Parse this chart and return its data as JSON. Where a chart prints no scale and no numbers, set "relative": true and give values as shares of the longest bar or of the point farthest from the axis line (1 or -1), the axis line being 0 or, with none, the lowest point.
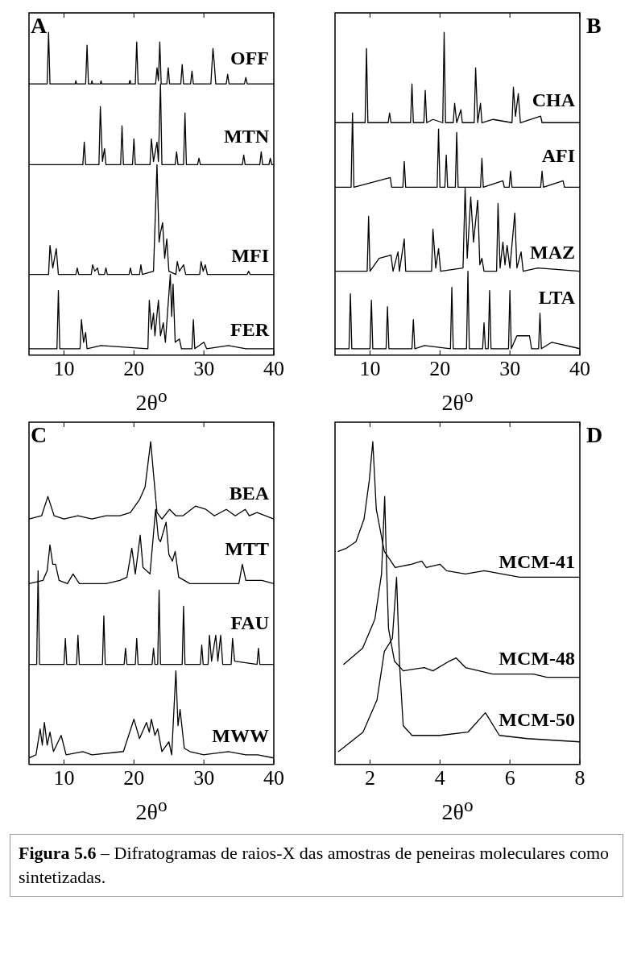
{
  "chart_data": [
    {
      "type": "line",
      "title": "A",
      "xlabel": "2θ$^{o}$",
      "relative": true,
      "xlim": [
        5,
        40
      ],
      "xticks": [
        10,
        20,
        30,
        40
      ],
      "series": [
        {
          "name": "OFF",
          "color": "#000000",
          "x": [
            5,
            7.6,
            7.8,
            8.0,
            11.6,
            11.7,
            11.8,
            13.1,
            13.3,
            13.5,
            13.9,
            14.0,
            14.1,
            15.2,
            15.3,
            15.4,
            19.3,
            19.4,
            19.5,
            20.2,
            20.4,
            20.6,
            23.1,
            23.3,
            23.5,
            23.7,
            23.9,
            24.7,
            24.9,
            25.1,
            26.7,
            26.9,
            27.1,
            28.1,
            28.3,
            28.5,
            31.0,
            31.3,
            31.5,
            31.7,
            33.2,
            33.4,
            33.6,
            35.8,
            36.0,
            36.2,
            40
          ],
          "values": [
            0.84,
            0.84,
            1.0,
            0.84,
            0.84,
            0.85,
            0.84,
            0.84,
            0.96,
            0.84,
            0.84,
            0.85,
            0.84,
            0.84,
            0.85,
            0.84,
            0.84,
            0.85,
            0.84,
            0.84,
            0.97,
            0.84,
            0.84,
            0.89,
            0.85,
            0.97,
            0.84,
            0.84,
            0.89,
            0.84,
            0.84,
            0.9,
            0.84,
            0.84,
            0.88,
            0.84,
            0.84,
            0.95,
            0.9,
            0.84,
            0.84,
            0.87,
            0.84,
            0.84,
            0.86,
            0.84,
            0.84
          ]
        },
        {
          "name": "MTN",
          "color": "#000000",
          "x": [
            5,
            12.7,
            12.9,
            13.1,
            15.0,
            15.2,
            15.5,
            15.8,
            16.0,
            18.1,
            18.3,
            18.5,
            19.8,
            20.0,
            20.2,
            22.3,
            22.5,
            22.8,
            23.3,
            23.5,
            23.8,
            24.0,
            25.9,
            26.1,
            26.3,
            27.1,
            27.3,
            27.5,
            29.1,
            29.3,
            29.5,
            35.5,
            35.7,
            35.9,
            38.0,
            38.2,
            38.4,
            39.3,
            39.5,
            39.7,
            40
          ],
          "values": [
            0.59,
            0.59,
            0.66,
            0.59,
            0.59,
            0.77,
            0.6,
            0.64,
            0.59,
            0.59,
            0.71,
            0.59,
            0.59,
            0.67,
            0.59,
            0.59,
            0.67,
            0.6,
            0.66,
            0.6,
            0.84,
            0.59,
            0.59,
            0.63,
            0.59,
            0.59,
            0.75,
            0.59,
            0.59,
            0.61,
            0.59,
            0.59,
            0.62,
            0.59,
            0.59,
            0.63,
            0.59,
            0.59,
            0.61,
            0.59,
            0.59
          ]
        },
        {
          "name": "MFI",
          "color": "#000000",
          "x": [
            5,
            7.8,
            8.0,
            8.4,
            8.9,
            9.2,
            11.7,
            11.9,
            12.1,
            13.9,
            14.1,
            14.4,
            14.8,
            15.0,
            15.8,
            16.0,
            16.2,
            19.3,
            19.5,
            19.7,
            20.8,
            21.0,
            21.2,
            22.8,
            23.3,
            23.6,
            23.8,
            24.1,
            24.4,
            24.7,
            25.0,
            26.0,
            26.2,
            26.5,
            27.1,
            27.4,
            29.4,
            29.6,
            29.9,
            30.2,
            30.5,
            36.2,
            36.4,
            36.6,
            40
          ],
          "values": [
            0.25,
            0.25,
            0.34,
            0.27,
            0.33,
            0.25,
            0.25,
            0.27,
            0.25,
            0.25,
            0.28,
            0.26,
            0.27,
            0.25,
            0.25,
            0.27,
            0.25,
            0.25,
            0.27,
            0.25,
            0.25,
            0.28,
            0.25,
            0.26,
            0.59,
            0.35,
            0.38,
            0.41,
            0.3,
            0.36,
            0.26,
            0.25,
            0.29,
            0.26,
            0.28,
            0.25,
            0.25,
            0.29,
            0.26,
            0.28,
            0.25,
            0.25,
            0.26,
            0.25,
            0.25
          ]
        },
        {
          "name": "FER",
          "color": "#000000",
          "x": [
            5,
            9.0,
            9.2,
            9.4,
            12.3,
            12.5,
            12.8,
            13.1,
            13.3,
            15.3,
            22.0,
            22.2,
            22.5,
            22.8,
            23.0,
            23.5,
            23.8,
            24.2,
            24.5,
            25.2,
            25.4,
            25.6,
            25.9,
            26.5,
            26.8,
            28.3,
            28.5,
            28.7,
            30.0,
            30.4,
            33.5,
            36.0,
            40
          ],
          "values": [
            0.02,
            0.02,
            0.2,
            0.02,
            0.02,
            0.11,
            0.04,
            0.07,
            0.02,
            0.03,
            0.02,
            0.17,
            0.08,
            0.13,
            0.06,
            0.17,
            0.06,
            0.1,
            0.04,
            0.25,
            0.12,
            0.22,
            0.04,
            0.05,
            0.02,
            0.02,
            0.11,
            0.02,
            0.04,
            0.02,
            0.03,
            0.02,
            0.02
          ]
        }
      ]
    },
    {
      "type": "line",
      "title": "B",
      "xlabel": "2θ$^{o}$",
      "relative": true,
      "xlim": [
        5,
        40
      ],
      "xticks": [
        10,
        20,
        30,
        40
      ],
      "series": [
        {
          "name": "CHA",
          "color": "#000000",
          "x": [
            5,
            9.3,
            9.5,
            9.7,
            12.6,
            12.8,
            13.0,
            15.8,
            16.0,
            16.2,
            17.7,
            17.9,
            18.1,
            19.0,
            20.4,
            20.6,
            20.8,
            21.9,
            22.1,
            22.4,
            23.0,
            23.2,
            24.9,
            25.1,
            25.4,
            25.8,
            26.0,
            27.6,
            30.3,
            30.5,
            30.8,
            31.2,
            31.5,
            34.4,
            34.6,
            40
          ],
          "values": [
            0.72,
            0.72,
            0.95,
            0.72,
            0.72,
            0.75,
            0.72,
            0.72,
            0.84,
            0.72,
            0.72,
            0.82,
            0.72,
            0.73,
            0.72,
            1.0,
            0.72,
            0.72,
            0.78,
            0.72,
            0.76,
            0.72,
            0.72,
            0.89,
            0.72,
            0.78,
            0.72,
            0.73,
            0.72,
            0.83,
            0.74,
            0.81,
            0.72,
            0.74,
            0.72,
            0.72
          ]
        },
        {
          "name": "AFI",
          "color": "#000000",
          "x": [
            5,
            7.3,
            7.5,
            7.7,
            12.9,
            13.1,
            14.7,
            14.9,
            15.1,
            19.6,
            19.8,
            20.0,
            20.7,
            20.9,
            21.1,
            22.2,
            22.4,
            22.6,
            25.8,
            26.0,
            26.2,
            29.0,
            29.2,
            29.9,
            30.1,
            30.3,
            34.4,
            34.6,
            34.8,
            37.6,
            37.8,
            40
          ],
          "values": [
            0.52,
            0.52,
            0.75,
            0.52,
            0.55,
            0.52,
            0.52,
            0.6,
            0.52,
            0.52,
            0.7,
            0.52,
            0.52,
            0.62,
            0.52,
            0.52,
            0.69,
            0.52,
            0.52,
            0.61,
            0.52,
            0.54,
            0.52,
            0.52,
            0.57,
            0.52,
            0.52,
            0.57,
            0.52,
            0.54,
            0.52,
            0.52
          ]
        },
        {
          "name": "MAZ",
          "color": "#000000",
          "x": [
            5,
            9.6,
            9.8,
            10.0,
            11.3,
            13.0,
            13.3,
            14.0,
            14.2,
            14.9,
            15.1,
            18.8,
            19.0,
            19.4,
            19.8,
            20.1,
            23.3,
            23.6,
            23.9,
            24.4,
            24.8,
            25.4,
            25.7,
            26.0,
            26.3,
            28.1,
            28.3,
            28.6,
            29.0,
            29.3,
            29.6,
            30.0,
            30.7,
            31.0,
            31.6,
            31.9,
            34.0,
            40
          ],
          "values": [
            0.26,
            0.26,
            0.43,
            0.26,
            0.3,
            0.31,
            0.26,
            0.32,
            0.26,
            0.36,
            0.26,
            0.26,
            0.39,
            0.27,
            0.33,
            0.26,
            0.27,
            0.52,
            0.3,
            0.49,
            0.35,
            0.48,
            0.28,
            0.3,
            0.26,
            0.26,
            0.47,
            0.27,
            0.35,
            0.28,
            0.34,
            0.27,
            0.44,
            0.27,
            0.32,
            0.26,
            0.27,
            0.26
          ]
        },
        {
          "name": "LTA",
          "color": "#000000",
          "x": [
            5,
            7.0,
            7.2,
            7.4,
            10.0,
            10.2,
            10.4,
            12.3,
            12.5,
            12.7,
            16.0,
            16.2,
            16.4,
            17.8,
            21.5,
            21.7,
            21.9,
            23.8,
            24.0,
            24.2,
            26.1,
            26.3,
            26.5,
            26.9,
            27.1,
            27.3,
            29.8,
            30.0,
            30.2,
            31.0,
            32.8,
            33.1,
            34.1,
            34.3,
            34.5,
            36.0,
            40
          ],
          "values": [
            0.02,
            0.02,
            0.19,
            0.02,
            0.02,
            0.17,
            0.02,
            0.02,
            0.15,
            0.02,
            0.02,
            0.11,
            0.02,
            0.03,
            0.02,
            0.21,
            0.02,
            0.02,
            0.26,
            0.02,
            0.02,
            0.1,
            0.02,
            0.02,
            0.2,
            0.02,
            0.02,
            0.2,
            0.02,
            0.06,
            0.06,
            0.02,
            0.02,
            0.13,
            0.02,
            0.04,
            0.02
          ]
        }
      ]
    },
    {
      "type": "line",
      "title": "C",
      "xlabel": "2θ$^{o}$",
      "relative": true,
      "xlim": [
        5,
        40
      ],
      "xticks": [
        10,
        20,
        30,
        40
      ],
      "series": [
        {
          "name": "BEA",
          "color": "#000000",
          "x": [
            5,
            6.8,
            7.7,
            8.6,
            10,
            12,
            14,
            16,
            18,
            19.5,
            20.8,
            21.6,
            22.0,
            22.4,
            22.8,
            23.3,
            24.0,
            25.1,
            26,
            27,
            28.8,
            30.3,
            31.5,
            33.2,
            34.5,
            35.9,
            36.5,
            37.6,
            40
          ],
          "values": [
            0.76,
            0.77,
            0.83,
            0.77,
            0.76,
            0.77,
            0.76,
            0.77,
            0.77,
            0.78,
            0.82,
            0.86,
            0.93,
            1.0,
            0.9,
            0.78,
            0.76,
            0.79,
            0.77,
            0.77,
            0.8,
            0.79,
            0.77,
            0.79,
            0.77,
            0.79,
            0.77,
            0.78,
            0.76
          ]
        },
        {
          "name": "MTT",
          "color": "#000000",
          "x": [
            5,
            7.0,
            7.6,
            8.0,
            8.4,
            8.8,
            9.3,
            10.5,
            11.3,
            12.2,
            14,
            16,
            18.0,
            19.0,
            19.7,
            20.2,
            20.9,
            21.3,
            21.8,
            22.3,
            23.1,
            23.5,
            23.8,
            24.2,
            24.6,
            25.0,
            25.5,
            25.9,
            26.4,
            28,
            30,
            32,
            35.0,
            35.5,
            36.0,
            38.3,
            40
          ],
          "values": [
            0.56,
            0.57,
            0.6,
            0.68,
            0.62,
            0.62,
            0.57,
            0.56,
            0.59,
            0.56,
            0.56,
            0.56,
            0.57,
            0.58,
            0.67,
            0.59,
            0.71,
            0.61,
            0.6,
            0.59,
            0.79,
            0.7,
            0.69,
            0.72,
            0.75,
            0.65,
            0.63,
            0.66,
            0.58,
            0.56,
            0.56,
            0.56,
            0.56,
            0.62,
            0.57,
            0.57,
            0.56
          ]
        },
        {
          "name": "FAU",
          "color": "#000000",
          "x": [
            5,
            6.1,
            6.3,
            6.5,
            10.0,
            10.2,
            10.4,
            11.8,
            12.0,
            12.2,
            15.5,
            15.7,
            15.9,
            18.6,
            18.8,
            19.0,
            20.2,
            20.4,
            20.6,
            22.6,
            22.8,
            23.0,
            23.4,
            23.6,
            23.8,
            26.9,
            27.1,
            27.3,
            29.5,
            29.7,
            29.9,
            30.6,
            30.8,
            31.1,
            31.7,
            32.0,
            32.4,
            32.7,
            33.9,
            34.1,
            34.4,
            37.6,
            37.8,
            38.0,
            40
          ],
          "values": [
            0.31,
            0.31,
            0.6,
            0.31,
            0.31,
            0.39,
            0.31,
            0.31,
            0.4,
            0.31,
            0.31,
            0.46,
            0.31,
            0.31,
            0.36,
            0.31,
            0.31,
            0.39,
            0.31,
            0.31,
            0.36,
            0.31,
            0.31,
            0.54,
            0.31,
            0.31,
            0.49,
            0.31,
            0.31,
            0.37,
            0.31,
            0.31,
            0.4,
            0.32,
            0.4,
            0.32,
            0.4,
            0.31,
            0.31,
            0.39,
            0.32,
            0.31,
            0.36,
            0.31,
            0.31
          ]
        },
        {
          "name": "MWW",
          "color": "#000000",
          "x": [
            5,
            6.0,
            6.6,
            6.9,
            7.2,
            7.6,
            8.0,
            8.5,
            9.6,
            10.3,
            12.7,
            14,
            18.5,
            20.0,
            20.8,
            21.8,
            22.2,
            22.5,
            23.0,
            23.4,
            24.0,
            25.0,
            25.4,
            26.0,
            26.3,
            26.6,
            27.2,
            28.0,
            30,
            33.5,
            36,
            37.7,
            40
          ],
          "values": [
            0.02,
            0.03,
            0.11,
            0.06,
            0.13,
            0.06,
            0.1,
            0.04,
            0.09,
            0.03,
            0.04,
            0.03,
            0.04,
            0.14,
            0.08,
            0.13,
            0.1,
            0.14,
            0.09,
            0.11,
            0.04,
            0.07,
            0.03,
            0.29,
            0.12,
            0.17,
            0.05,
            0.04,
            0.03,
            0.04,
            0.03,
            0.03,
            0.02
          ]
        }
      ]
    },
    {
      "type": "line",
      "title": "D",
      "xlabel": "2θ$^{o}$",
      "relative": true,
      "xlim": [
        1,
        8
      ],
      "xticks": [
        2,
        4,
        6,
        8
      ],
      "series": [
        {
          "name": "MCM-41",
          "color": "#000000",
          "x": [
            1.09,
            1.33,
            1.6,
            1.83,
            1.98,
            2.08,
            2.18,
            2.41,
            2.72,
            3.18,
            3.48,
            3.61,
            4.0,
            4.19,
            4.73,
            5.27,
            6.28,
            7.98
          ],
          "values": [
            0.66,
            0.67,
            0.69,
            0.76,
            0.88,
            1.0,
            0.79,
            0.66,
            0.61,
            0.62,
            0.63,
            0.61,
            0.62,
            0.6,
            0.59,
            0.6,
            0.58,
            0.58
          ]
        },
        {
          "name": "MCM-48",
          "color": "#000000",
          "x": [
            1.25,
            1.79,
            2.14,
            2.33,
            2.42,
            2.48,
            2.53,
            2.7,
            2.95,
            3.55,
            3.8,
            4.27,
            4.46,
            4.73,
            5.51,
            6.67,
            7.06,
            7.98
          ],
          "values": [
            0.31,
            0.36,
            0.45,
            0.59,
            0.83,
            0.59,
            0.42,
            0.32,
            0.29,
            0.3,
            0.29,
            0.32,
            0.33,
            0.3,
            0.28,
            0.28,
            0.27,
            0.27
          ]
        },
        {
          "name": "MCM-50",
          "color": "#000000",
          "x": [
            1.1,
            1.8,
            2.2,
            2.41,
            2.64,
            2.76,
            2.85,
            2.95,
            3.2,
            4.0,
            4.8,
            5.3,
            5.7,
            6.5,
            8.0
          ],
          "values": [
            0.04,
            0.1,
            0.2,
            0.35,
            0.39,
            0.58,
            0.3,
            0.12,
            0.09,
            0.09,
            0.1,
            0.16,
            0.09,
            0.08,
            0.07
          ]
        }
      ]
    },
    {
      "type": "other",
      "title": "Figura 5.6",
      "subtitle": "– Difratogramas de raios-X das amostras de peneiras moleculares como sintetizadas."
    }
  ]
}
